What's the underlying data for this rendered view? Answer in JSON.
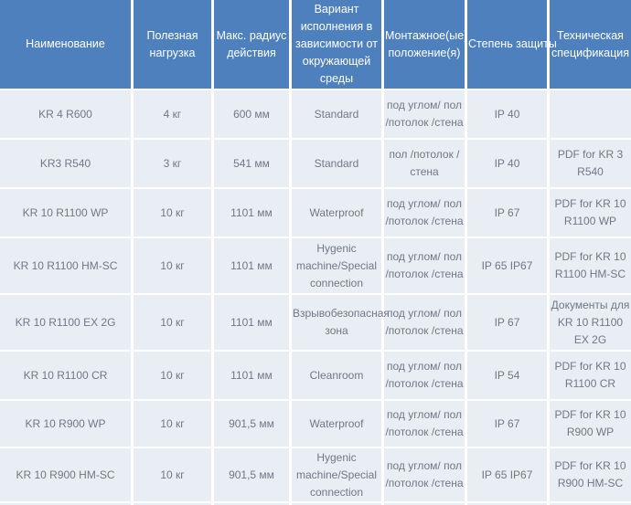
{
  "table": {
    "title": "robot-specifications",
    "headers": [
      "Наименование",
      "Полезная нагрузка",
      "Макс. радиус действия",
      "Вариант исполнения в зависимости от окружающей среды",
      "Монтажное(ые) положение(я)",
      "Степень защиты",
      "Техническая спецификация"
    ],
    "rows": [
      [
        "KR 4 R600",
        "4 кг",
        "600 мм",
        "Standard",
        "под углом/ пол /потолок /стена",
        "IP 40",
        ""
      ],
      [
        "KR3 R540",
        "3 кг",
        "541 мм",
        "Standard",
        "пол /потолок / стена",
        "IP 40",
        "PDF for KR 3 R540"
      ],
      [
        "KR 10 R1100 WP",
        "10 кг",
        "1101 мм",
        "Waterproof",
        "под углом/ пол /потолок /стена",
        "IP 67",
        "PDF for KR 10 R1100 WP"
      ],
      [
        "KR 10 R1100 HM-SC",
        "10 кг",
        "1101 мм",
        "Hygenic machine/Special connection",
        "под углом/ пол /потолок /стена",
        "IP 65 IP67",
        "PDF for KR 10 R1100 HM-SC"
      ],
      [
        "KR 10 R1100 EX 2G",
        "10 кг",
        "1101 мм",
        "Взрывобезопасная зона",
        "под углом/ пол /потолок /стена",
        "IP 67",
        "Документы для KR 10 R1100 EX 2G"
      ],
      [
        "KR 10 R1100 CR",
        "10 кг",
        "1101 мм",
        "Cleanroom",
        "под углом/ пол /потолок /стена",
        "IP 54",
        "PDF for KR 10 R1100 CR"
      ],
      [
        "KR 10 R900 WP",
        "10 кг",
        "901,5 мм",
        "Waterproof",
        "под углом/ пол /потолок /стена",
        "IP 67",
        "PDF for KR 10 R900 WP"
      ],
      [
        "KR 10 R900 HM-SC",
        "10 кг",
        "901,5 мм",
        "Hygenic machine/Special connection",
        "под углом/ пол /потолок /стена",
        "IP 65 IP67",
        "PDF for KR 10 R900 HM-SC"
      ]
    ],
    "colors": {
      "header_bg": "#4e80bd",
      "row_bg": "#e9edf4",
      "header_text": "#ffffff",
      "body_text": "#717885",
      "separator": "#ffffff"
    }
  }
}
